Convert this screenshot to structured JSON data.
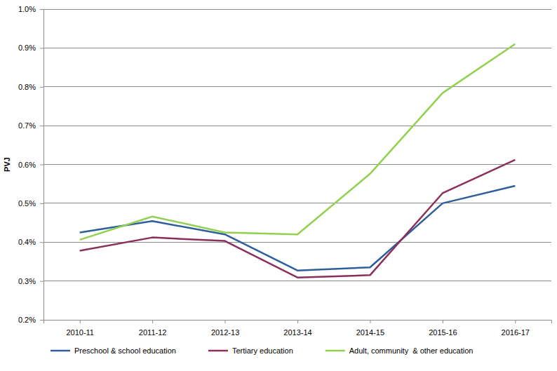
{
  "chart_data": {
    "type": "line",
    "y_label": "PVJ",
    "categories": [
      "2010-11",
      "2011-12",
      "2012-13",
      "2013-14",
      "2014-15",
      "2015-16",
      "2016-17"
    ],
    "series": [
      {
        "name": "Preschool & school education",
        "color": "#2e5f9c",
        "values": [
          0.425,
          0.454,
          0.42,
          0.327,
          0.335,
          0.5,
          0.545
        ]
      },
      {
        "name": "Tertiary education",
        "color": "#8b2f5c",
        "values": [
          0.378,
          0.412,
          0.403,
          0.309,
          0.315,
          0.526,
          0.612
        ]
      },
      {
        "name": "Adult, community  & other education",
        "color": "#92d050",
        "values": [
          0.406,
          0.466,
          0.425,
          0.42,
          0.576,
          0.784,
          0.91
        ]
      }
    ],
    "ylim": [
      0.2,
      1.0
    ],
    "yticks": [
      {
        "value": 0.2,
        "label": "0.2%"
      },
      {
        "value": 0.3,
        "label": "0.3%"
      },
      {
        "value": 0.4,
        "label": "0.4%"
      },
      {
        "value": 0.5,
        "label": "0.5%"
      },
      {
        "value": 0.6,
        "label": "0.6%"
      },
      {
        "value": 0.7,
        "label": "0.7%"
      },
      {
        "value": 0.8,
        "label": "0.8%"
      },
      {
        "value": 0.9,
        "label": "0.9%"
      },
      {
        "value": 1.0,
        "label": "1.0%"
      }
    ],
    "grid": true,
    "legend": "bottom"
  }
}
